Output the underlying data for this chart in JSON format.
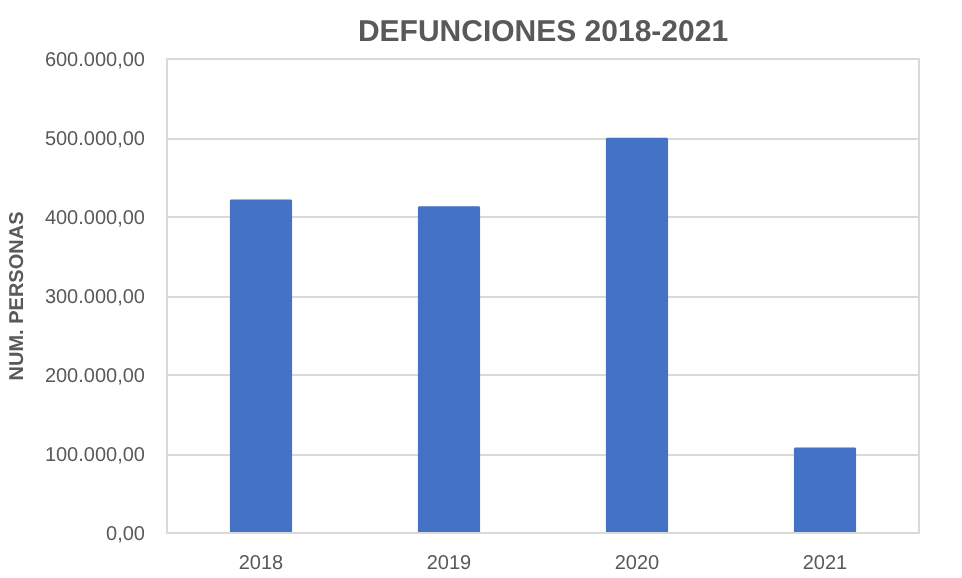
{
  "chart_data": {
    "type": "bar",
    "title": "DEFUNCIONES 2018-2021",
    "ylabel": "NUM. PERSONAS",
    "categories": [
      "2018",
      "2019",
      "2020",
      "2021"
    ],
    "values": [
      421000,
      412500,
      499000,
      107000
    ],
    "color": "#4472c4",
    "ylim": [
      0,
      600000
    ],
    "yticks": [
      {
        "value": 0,
        "label": "0,00"
      },
      {
        "value": 100000,
        "label": "100.000,00"
      },
      {
        "value": 200000,
        "label": "200.000,00"
      },
      {
        "value": 300000,
        "label": "300.000,00"
      },
      {
        "value": 400000,
        "label": "400.000,00"
      },
      {
        "value": 500000,
        "label": "500.000,00"
      },
      {
        "value": 600000,
        "label": "600.000,00"
      }
    ],
    "grid": "y"
  }
}
